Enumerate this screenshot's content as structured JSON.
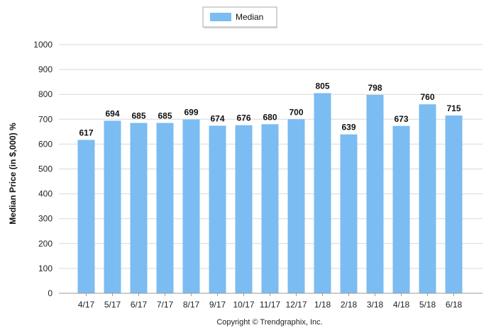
{
  "chart_data": {
    "type": "bar",
    "categories": [
      "4/17",
      "5/17",
      "6/17",
      "7/17",
      "8/17",
      "9/17",
      "10/17",
      "11/17",
      "12/17",
      "1/18",
      "2/18",
      "3/18",
      "4/18",
      "5/18",
      "6/18"
    ],
    "series": [
      {
        "name": "Median",
        "values": [
          617,
          694,
          685,
          685,
          699,
          674,
          676,
          680,
          700,
          805,
          639,
          798,
          673,
          760,
          715
        ]
      }
    ],
    "ylabel": "Median Price (in $,000) %",
    "xlabel": "",
    "ylim": [
      0,
      1000
    ],
    "yticks": [
      0,
      100,
      200,
      300,
      400,
      500,
      600,
      700,
      800,
      900,
      1000
    ],
    "grid": true,
    "legend_position": "top-center",
    "bar_color": "#7bbcf2",
    "grid_color": "#d9d9d9"
  },
  "footer": {
    "copyright": "Copyright © Trendgraphix, Inc."
  }
}
